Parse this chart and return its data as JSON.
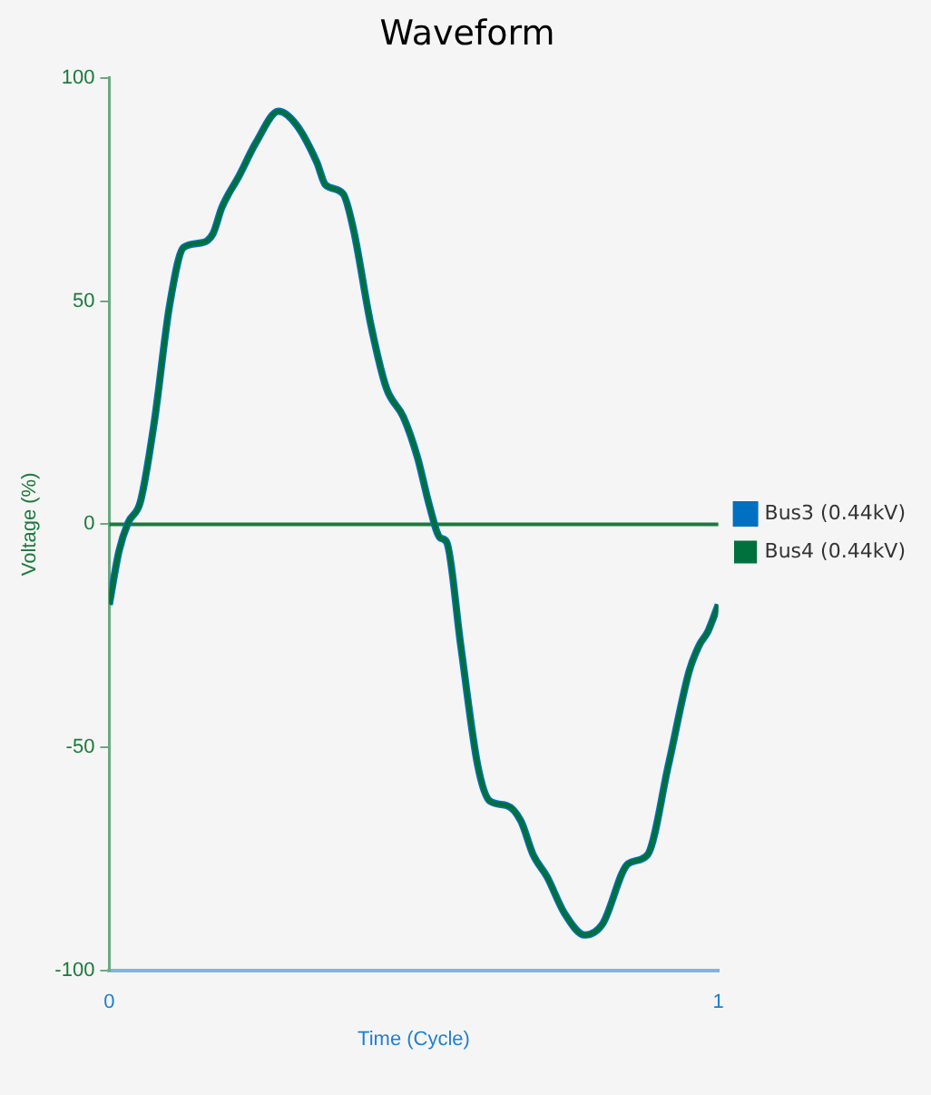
{
  "chart_data": {
    "type": "line",
    "title": "Waveform",
    "xlabel": "Time (Cycle)",
    "ylabel": "Voltage (%)",
    "x": [
      0,
      0.016,
      0.031,
      0.051,
      0.074,
      0.099,
      0.122,
      0.151,
      0.17,
      0.185,
      0.213,
      0.241,
      0.278,
      0.307,
      0.341,
      0.355,
      0.384,
      0.401,
      0.429,
      0.455,
      0.483,
      0.506,
      0.526,
      0.543,
      0.554,
      0.577,
      0.605,
      0.625,
      0.653,
      0.676,
      0.696,
      0.719,
      0.747,
      0.781,
      0.81,
      0.852,
      0.884,
      0.918,
      0.952,
      0.969,
      0.983,
      1
    ],
    "series": [
      {
        "name": "Bus3 (0.44kV)",
        "color": "#0070c0",
        "values": [
          -18,
          -6,
          0.4,
          5,
          23,
          49,
          62,
          63,
          65,
          71,
          78,
          85.5,
          92.5,
          89.5,
          81,
          76,
          74,
          66,
          45,
          30.5,
          24,
          15,
          4,
          -3,
          -4,
          -27,
          -54,
          -62,
          -63,
          -66.5,
          -74,
          -79,
          -87,
          -92,
          -89.5,
          -76,
          -74,
          -54,
          -33,
          -27,
          -24,
          -18
        ]
      },
      {
        "name": "Bus4 (0.44kV)",
        "color": "#00703c",
        "values": [
          -18,
          -6,
          0.4,
          5,
          23,
          49,
          62,
          63,
          65,
          71,
          78,
          85.5,
          92.5,
          89.5,
          81,
          76,
          74,
          66,
          45,
          30.5,
          24,
          15,
          4,
          -3,
          -4,
          -27,
          -54,
          -62,
          -63,
          -66.5,
          -74,
          -79,
          -87,
          -92,
          -89.5,
          -76,
          -74,
          -54,
          -33,
          -27,
          -24,
          -18
        ]
      }
    ],
    "xlim": [
      0,
      1
    ],
    "xticks": [
      0,
      1
    ],
    "ylim": [
      -100,
      100
    ],
    "yticks": [
      -100,
      -50,
      0,
      50,
      100
    ],
    "ref_lines": [
      {
        "axis": "y",
        "value": 0,
        "color": "#1a7a3c"
      }
    ],
    "grid": false,
    "legend": "right",
    "marker": "none",
    "line_style": "solid"
  }
}
